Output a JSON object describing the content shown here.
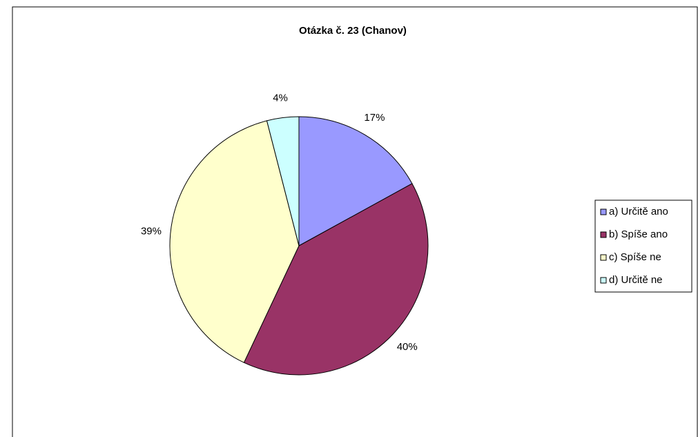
{
  "chart_data": {
    "type": "pie",
    "title": "Otázka č. 23 (Chanov)",
    "categories": [
      "a) Určitě ano",
      "b) Spíše ano",
      "c) Spíše ne",
      "d) Určitě ne"
    ],
    "values": [
      17,
      40,
      39,
      4
    ],
    "value_labels": [
      "17%",
      "40%",
      "39%",
      "4%"
    ],
    "colors": [
      "#9999ff",
      "#993366",
      "#ffffcc",
      "#ccffff"
    ],
    "legend": "right"
  }
}
